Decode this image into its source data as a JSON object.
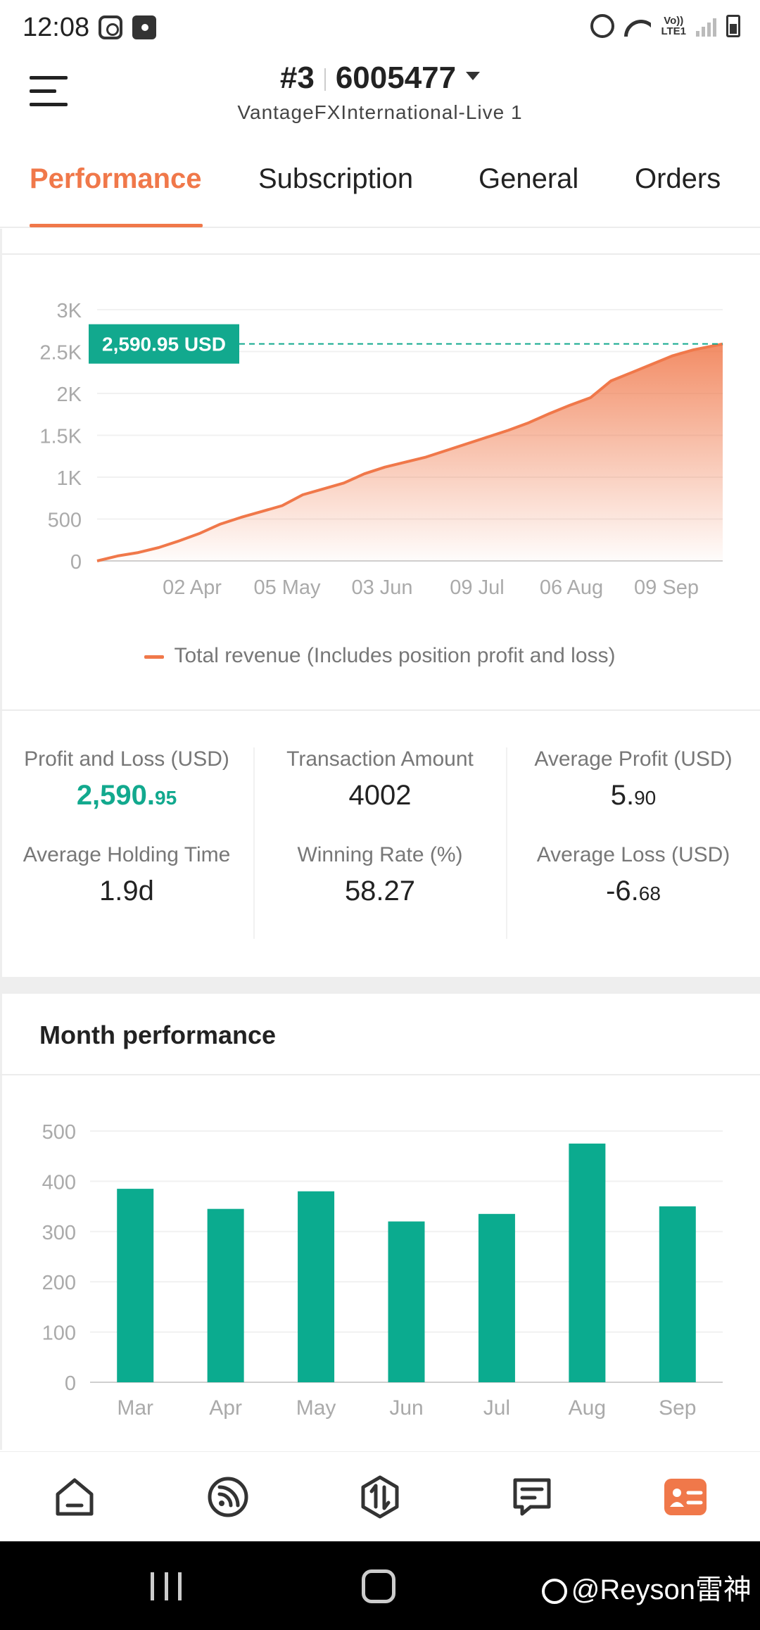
{
  "status_bar": {
    "time": "12:08",
    "volte_line1": "Vo))",
    "volte_line2": "LTE1"
  },
  "header": {
    "account_number_prefix": "#3",
    "account_number": "6005477",
    "server": "VantageFXInternational-Live 1"
  },
  "tabs": [
    {
      "label": "Performance",
      "active": true
    },
    {
      "label": "Subscription",
      "active": false
    },
    {
      "label": "General",
      "active": false
    },
    {
      "label": "Orders",
      "active": false
    }
  ],
  "colors": {
    "accent": "#f0784a",
    "green": "#12a98e",
    "bar": "#0bab8f"
  },
  "revenue_chart": {
    "chart_data": {
      "type": "area",
      "current_value_label": "2,590.95 USD",
      "y_ticks": [
        "0",
        "500",
        "1K",
        "1.5K",
        "2K",
        "2.5K",
        "3K"
      ],
      "ylim": [
        0,
        3000
      ],
      "x_ticks": [
        "02 Apr",
        "05 May",
        "03 Jun",
        "09 Jul",
        "06 Aug",
        "09 Sep"
      ],
      "x_start": "2023-03-01",
      "x_end": "2023-09-30",
      "series": [
        {
          "name": "Total revenue (Includes position profit and loss)",
          "points": [
            [
              "2023-03-01",
              0
            ],
            [
              "2023-03-08",
              60
            ],
            [
              "2023-03-15",
              100
            ],
            [
              "2023-03-22",
              160
            ],
            [
              "2023-03-29",
              240
            ],
            [
              "2023-04-05",
              330
            ],
            [
              "2023-04-12",
              440
            ],
            [
              "2023-04-19",
              520
            ],
            [
              "2023-04-26",
              590
            ],
            [
              "2023-05-03",
              660
            ],
            [
              "2023-05-10",
              790
            ],
            [
              "2023-05-17",
              860
            ],
            [
              "2023-05-24",
              930
            ],
            [
              "2023-05-31",
              1040
            ],
            [
              "2023-06-07",
              1120
            ],
            [
              "2023-06-14",
              1180
            ],
            [
              "2023-06-21",
              1240
            ],
            [
              "2023-06-28",
              1320
            ],
            [
              "2023-07-05",
              1400
            ],
            [
              "2023-07-12",
              1480
            ],
            [
              "2023-07-19",
              1560
            ],
            [
              "2023-07-26",
              1650
            ],
            [
              "2023-08-02",
              1760
            ],
            [
              "2023-08-09",
              1860
            ],
            [
              "2023-08-16",
              1950
            ],
            [
              "2023-08-23",
              2150
            ],
            [
              "2023-08-30",
              2250
            ],
            [
              "2023-09-06",
              2350
            ],
            [
              "2023-09-13",
              2450
            ],
            [
              "2023-09-20",
              2520
            ],
            [
              "2023-09-30",
              2590.95
            ]
          ]
        }
      ]
    }
  },
  "stats": {
    "pnl_label": "Profit and Loss (USD)",
    "pnl_int": "2,590.",
    "pnl_dec": "95",
    "txn_label": "Transaction Amount",
    "txn_value": "4002",
    "avg_profit_label": "Average Profit (USD)",
    "avg_profit_int": "5.",
    "avg_profit_dec": "90",
    "holding_label": "Average Holding Time",
    "holding_value": "1.9d",
    "win_label": "Winning Rate (%)",
    "win_value": "58.27",
    "avg_loss_label": "Average Loss (USD)",
    "avg_loss_int": "-6.",
    "avg_loss_dec": "68"
  },
  "month_performance": {
    "title": "Month performance",
    "chart_data": {
      "type": "bar",
      "categories": [
        "Mar",
        "Apr",
        "May",
        "Jun",
        "Jul",
        "Aug",
        "Sep"
      ],
      "values": [
        385,
        345,
        380,
        320,
        335,
        475,
        350
      ],
      "y_ticks": [
        "0",
        "100",
        "200",
        "300",
        "400",
        "500"
      ],
      "ylim": [
        0,
        500
      ]
    }
  },
  "bottom_nav": [
    {
      "name": "home",
      "active": false
    },
    {
      "name": "signals",
      "active": false
    },
    {
      "name": "trade",
      "active": false
    },
    {
      "name": "orders",
      "active": false
    },
    {
      "name": "account",
      "active": true
    }
  ],
  "watermark": "@Reyson雷神"
}
